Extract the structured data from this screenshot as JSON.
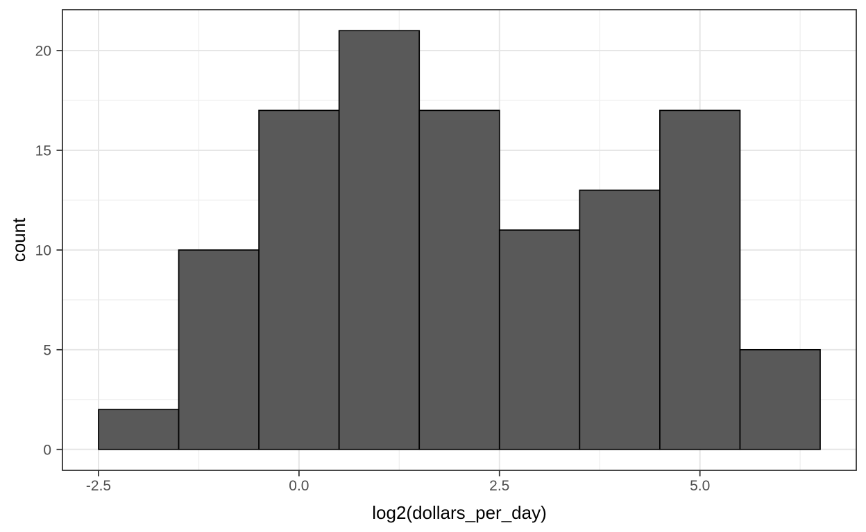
{
  "chart_data": {
    "type": "histogram",
    "title": "",
    "xlabel": "log2(dollars_per_day)",
    "ylabel": "count",
    "bin_edges": [
      -2.5,
      -1.5,
      -0.5,
      0.5,
      1.5,
      2.5,
      3.5,
      4.5,
      5.5,
      6.5
    ],
    "counts": [
      2,
      10,
      17,
      21,
      17,
      11,
      13,
      17,
      5
    ],
    "x_ticks": {
      "values": [
        -2.5,
        0,
        2.5,
        5
      ],
      "labels": [
        "-2.5",
        "0.0",
        "2.5",
        "5.0"
      ]
    },
    "y_ticks": {
      "values": [
        0,
        5,
        10,
        15,
        20
      ],
      "labels": [
        "0",
        "5",
        "10",
        "15",
        "20"
      ]
    },
    "x_minor_gridlines": [
      -1.25,
      1.25,
      3.75,
      6.25
    ],
    "y_minor_gridlines": [
      2.5,
      7.5,
      12.5,
      17.5
    ],
    "xlim": [
      -2.95,
      6.95
    ],
    "ylim": [
      -1.05,
      22.05
    ],
    "grid": true,
    "legend": "none",
    "colors": {
      "bar_fill": "#595959",
      "bar_stroke": "#000000",
      "panel_border": "#333333",
      "panel_background": "#FFFFFF",
      "grid_major": "#E6E6E6",
      "grid_minor": "#F0F0F0",
      "tick_mark": "#333333",
      "tick_label": "#4D4D4D",
      "axis_title": "#000000",
      "background": "#FFFFFF"
    }
  }
}
